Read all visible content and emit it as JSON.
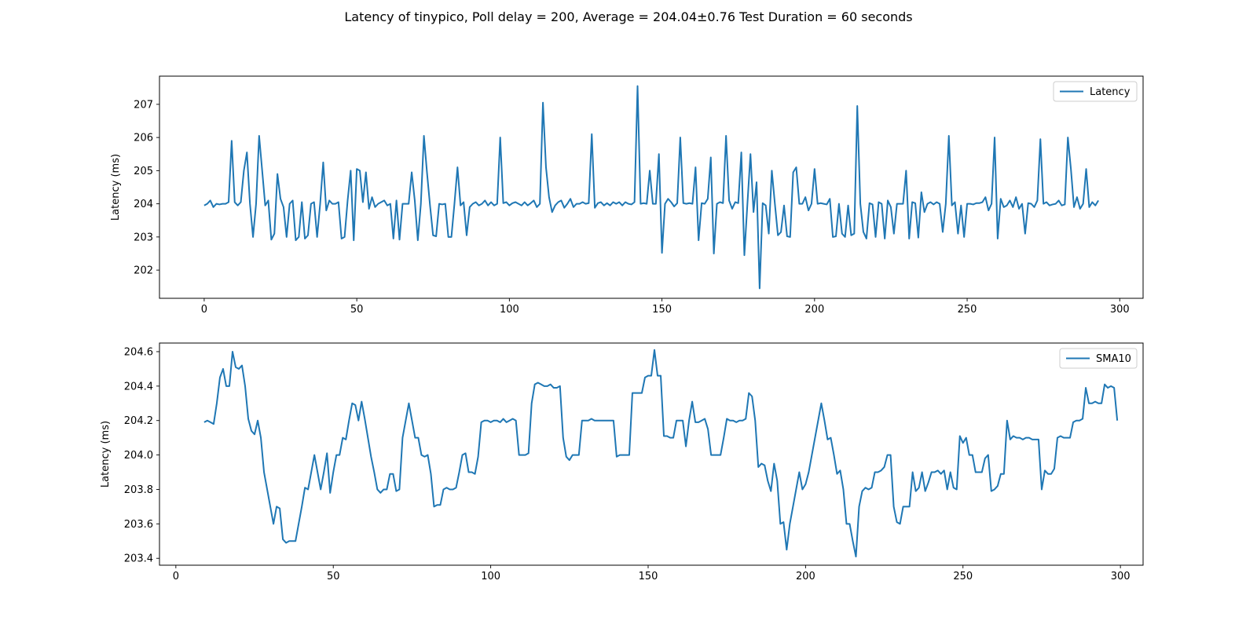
{
  "title": "Latency of tinypico, Poll delay = 200, Average = 204.04±0.76 Test Duration = 60 seconds",
  "chart_data": [
    {
      "type": "line",
      "xlabel": "",
      "ylabel": "Latency (ms)",
      "xlim": [
        -14.65,
        307.65
      ],
      "ylim": [
        201.15,
        207.85
      ],
      "xticks": [
        0,
        50,
        100,
        150,
        200,
        250,
        300
      ],
      "yticks": [
        202,
        203,
        204,
        205,
        206,
        207
      ],
      "ytick_labels": [
        "202",
        "203",
        "204",
        "205",
        "206",
        "207"
      ],
      "grid": false,
      "legend": "top-right",
      "color": "#1f77b4",
      "series": [
        {
          "name": "Latency",
          "x_start": 0,
          "x_step": 1,
          "values": [
            203.95,
            204.0,
            204.1,
            203.9,
            204.0,
            203.98,
            204.0,
            204.0,
            204.05,
            205.9,
            204.05,
            203.95,
            204.05,
            205.0,
            205.55,
            204.0,
            203.0,
            204.0,
            206.05,
            205.0,
            203.95,
            204.1,
            202.92,
            203.1,
            204.9,
            204.15,
            203.9,
            203.0,
            204.0,
            204.1,
            202.9,
            203.0,
            204.05,
            202.95,
            203.05,
            204.0,
            204.05,
            203.0,
            204.0,
            205.25,
            203.8,
            204.1,
            204.0,
            204.0,
            204.05,
            202.95,
            203.0,
            204.1,
            205.0,
            202.9,
            205.05,
            205.0,
            204.05,
            204.95,
            203.85,
            204.2,
            203.9,
            204.0,
            204.05,
            204.1,
            203.95,
            204.0,
            202.95,
            204.1,
            202.92,
            204.0,
            204.0,
            204.0,
            204.95,
            204.1,
            202.9,
            204.0,
            206.05,
            204.95,
            203.95,
            203.05,
            203.02,
            204.0,
            203.98,
            204.0,
            203.0,
            203.0,
            204.0,
            205.1,
            203.95,
            204.05,
            203.05,
            203.9,
            204.0,
            204.05,
            203.95,
            204.0,
            204.1,
            203.95,
            204.05,
            203.95,
            204.0,
            206.0,
            204.02,
            204.05,
            203.95,
            204.02,
            204.05,
            204.0,
            203.95,
            204.05,
            203.95,
            204.02,
            204.1,
            203.9,
            204.0,
            207.05,
            205.1,
            204.2,
            203.75,
            203.95,
            204.05,
            204.1,
            203.88,
            204.0,
            204.15,
            203.9,
            204.0,
            204.0,
            204.05,
            204.0,
            204.02,
            206.1,
            203.88,
            204.02,
            204.05,
            203.95,
            204.02,
            203.95,
            204.05,
            204.0,
            204.05,
            203.95,
            204.05,
            204.0,
            203.98,
            204.05,
            207.55,
            204.0,
            204.02,
            204.0,
            205.0,
            204.0,
            204.0,
            205.5,
            202.52,
            204.0,
            204.15,
            204.05,
            203.92,
            204.02,
            206.0,
            204.02,
            204.0,
            204.02,
            204.0,
            205.1,
            202.9,
            204.02,
            204.0,
            204.15,
            205.4,
            202.5,
            204.0,
            204.05,
            204.02,
            206.05,
            204.1,
            203.85,
            204.05,
            204.02,
            205.55,
            202.45,
            204.0,
            205.5,
            203.75,
            204.65,
            201.45,
            204.02,
            203.95,
            203.1,
            205.0,
            204.0,
            203.05,
            203.15,
            203.95,
            203.02,
            203.0,
            204.95,
            205.1,
            204.0,
            204.0,
            204.2,
            203.8,
            204.0,
            205.05,
            204.0,
            204.02,
            204.0,
            203.98,
            204.15,
            203.0,
            203.02,
            204.0,
            203.1,
            203.0,
            203.95,
            203.05,
            203.1,
            206.95,
            204.0,
            203.15,
            202.95,
            204.02,
            203.98,
            203.0,
            204.05,
            204.0,
            202.95,
            204.1,
            203.9,
            203.1,
            204.0,
            204.0,
            204.0,
            205.0,
            202.95,
            204.05,
            204.02,
            202.98,
            204.35,
            203.75,
            204.0,
            204.05,
            203.98,
            204.05,
            204.0,
            203.15,
            204.0,
            206.05,
            203.95,
            204.05,
            203.1,
            203.95,
            203.0,
            204.0,
            204.0,
            203.98,
            204.02,
            204.02,
            204.05,
            204.2,
            203.8,
            204.0,
            206.0,
            202.95,
            204.15,
            203.9,
            203.95,
            204.1,
            203.9,
            204.2,
            203.85,
            204.0,
            203.1,
            204.02,
            204.0,
            203.9,
            204.1,
            205.95,
            204.0,
            204.05,
            203.95,
            203.98,
            204.0,
            204.1,
            203.95,
            203.98,
            206.0,
            205.05,
            203.9,
            204.2,
            203.85,
            204.0,
            205.05,
            203.9,
            204.05,
            203.95,
            204.1
          ]
        }
      ]
    },
    {
      "type": "line",
      "xlabel": "",
      "ylabel": "Latency (ms)",
      "xlim": [
        -5.2,
        307.2
      ],
      "ylim": [
        203.36,
        204.65
      ],
      "xticks": [
        0,
        50,
        100,
        150,
        200,
        250,
        300
      ],
      "yticks": [
        203.4,
        203.6,
        203.8,
        204.0,
        204.2,
        204.4,
        204.6
      ],
      "ytick_labels": [
        "203.4",
        "203.6",
        "203.8",
        "204.0",
        "204.2",
        "204.4",
        "204.6"
      ],
      "grid": false,
      "legend": "top-right",
      "color": "#1f77b4",
      "series": [
        {
          "name": "SMA10",
          "x_start": 9,
          "x_step": 1,
          "values": [
            204.19,
            204.2,
            204.19,
            204.18,
            204.3,
            204.45,
            204.5,
            204.4,
            204.4,
            204.6,
            204.51,
            204.5,
            204.52,
            204.4,
            204.21,
            204.14,
            204.12,
            204.2,
            204.1,
            203.9,
            203.8,
            203.7,
            203.6,
            203.7,
            203.69,
            203.51,
            203.49,
            203.5,
            203.5,
            203.5,
            203.6,
            203.7,
            203.81,
            203.8,
            203.9,
            204.0,
            203.9,
            203.8,
            203.9,
            204.01,
            203.78,
            203.9,
            204.0,
            204.0,
            204.1,
            204.09,
            204.2,
            204.3,
            204.29,
            204.2,
            204.31,
            204.21,
            204.1,
            203.99,
            203.9,
            203.8,
            203.78,
            203.8,
            203.8,
            203.89,
            203.89,
            203.79,
            203.8,
            204.1,
            204.2,
            204.3,
            204.2,
            204.1,
            204.1,
            204.0,
            203.99,
            204.0,
            203.89,
            203.7,
            203.71,
            203.71,
            203.8,
            203.81,
            203.8,
            203.8,
            203.81,
            203.9,
            204.0,
            204.01,
            203.9,
            203.9,
            203.89,
            203.99,
            204.19,
            204.2,
            204.2,
            204.19,
            204.2,
            204.2,
            204.19,
            204.21,
            204.19,
            204.2,
            204.21,
            204.2,
            204.0,
            204.0,
            204.0,
            204.01,
            204.3,
            204.41,
            204.42,
            204.41,
            204.4,
            204.4,
            204.41,
            204.39,
            204.39,
            204.4,
            204.1,
            203.99,
            203.97,
            204.0,
            204.0,
            204.0,
            204.2,
            204.2,
            204.2,
            204.21,
            204.2,
            204.2,
            204.2,
            204.2,
            204.2,
            204.2,
            204.2,
            203.99,
            204.0,
            204.0,
            204.0,
            204.0,
            204.36,
            204.36,
            204.36,
            204.36,
            204.45,
            204.46,
            204.46,
            204.61,
            204.46,
            204.46,
            204.11,
            204.11,
            204.1,
            204.1,
            204.2,
            204.2,
            204.2,
            204.05,
            204.2,
            204.31,
            204.19,
            204.19,
            204.2,
            204.21,
            204.15,
            204.0,
            204.0,
            204.0,
            204.0,
            204.1,
            204.21,
            204.2,
            204.2,
            204.19,
            204.2,
            204.2,
            204.21,
            204.36,
            204.34,
            204.2,
            203.93,
            203.95,
            203.94,
            203.85,
            203.79,
            203.95,
            203.85,
            203.6,
            203.61,
            203.45,
            203.6,
            203.7,
            203.8,
            203.9,
            203.8,
            203.83,
            203.9,
            204.0,
            204.1,
            204.2,
            204.3,
            204.2,
            204.09,
            204.1,
            204.0,
            203.89,
            203.91,
            203.8,
            203.6,
            203.6,
            203.5,
            203.41,
            203.7,
            203.79,
            203.81,
            203.8,
            203.81,
            203.9,
            203.9,
            203.91,
            203.93,
            204.0,
            204.0,
            203.7,
            203.61,
            203.6,
            203.7,
            203.7,
            203.7,
            203.9,
            203.79,
            203.81,
            203.9,
            203.79,
            203.84,
            203.9,
            203.9,
            203.91,
            203.89,
            203.91,
            203.8,
            203.9,
            203.81,
            203.8,
            204.11,
            204.07,
            204.1,
            204.0,
            204.0,
            203.9,
            203.9,
            203.9,
            203.98,
            204.0,
            203.79,
            203.8,
            203.82,
            203.89,
            203.89,
            204.2,
            204.09,
            204.11,
            204.1,
            204.1,
            204.09,
            204.1,
            204.1,
            204.09,
            204.09,
            204.09,
            203.8,
            203.91,
            203.89,
            203.89,
            203.92,
            204.1,
            204.11,
            204.1,
            204.1,
            204.1,
            204.19,
            204.2,
            204.2,
            204.21,
            204.39,
            204.3,
            204.3,
            204.31,
            204.3,
            204.3,
            204.41,
            204.39,
            204.4,
            204.39,
            204.2
          ]
        }
      ]
    }
  ]
}
